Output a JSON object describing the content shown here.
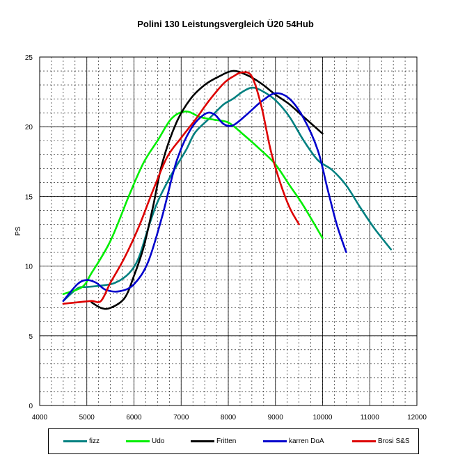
{
  "chart_data": {
    "type": "line",
    "title": "Polini 130 Leistungsvergleich Ü20 54Hub",
    "xlabel": "",
    "ylabel": "PS",
    "xlim": [
      4000,
      12000
    ],
    "ylim": [
      0,
      25
    ],
    "xticks": [
      4000,
      5000,
      6000,
      7000,
      8000,
      9000,
      10000,
      11000,
      12000
    ],
    "yticks": [
      0,
      5,
      10,
      15,
      20,
      25
    ],
    "grid": true,
    "legend_position": "bottom",
    "series": [
      {
        "name": "fizz",
        "color": "#008080",
        "points": [
          [
            4500,
            7.5
          ],
          [
            4800,
            8.4
          ],
          [
            5000,
            8.5
          ],
          [
            5300,
            8.6
          ],
          [
            5600,
            8.8
          ],
          [
            5900,
            9.5
          ],
          [
            6100,
            10.6
          ],
          [
            6300,
            12.7
          ],
          [
            6500,
            14.6
          ],
          [
            6800,
            16.6
          ],
          [
            7100,
            18.3
          ],
          [
            7300,
            19.6
          ],
          [
            7600,
            20.6
          ],
          [
            7900,
            21.6
          ],
          [
            8100,
            22
          ],
          [
            8300,
            22.5
          ],
          [
            8500,
            22.8
          ],
          [
            8700,
            22.6
          ],
          [
            9000,
            21.9
          ],
          [
            9300,
            20.7
          ],
          [
            9600,
            19
          ],
          [
            9900,
            17.6
          ],
          [
            10200,
            16.9
          ],
          [
            10500,
            15.8
          ],
          [
            10800,
            14.2
          ],
          [
            11100,
            12.7
          ],
          [
            11450,
            11.2
          ]
        ]
      },
      {
        "name": "Udo",
        "color": "#00ee00",
        "points": [
          [
            4500,
            8
          ],
          [
            4900,
            8.5
          ],
          [
            5100,
            9.5
          ],
          [
            5500,
            11.8
          ],
          [
            5900,
            15.1
          ],
          [
            6200,
            17.4
          ],
          [
            6500,
            19
          ],
          [
            6800,
            20.6
          ],
          [
            7100,
            21.1
          ],
          [
            7400,
            20.7
          ],
          [
            7700,
            20.5
          ],
          [
            8000,
            20.3
          ],
          [
            8300,
            19.5
          ],
          [
            8700,
            18.3
          ],
          [
            9000,
            17.3
          ],
          [
            9300,
            15.8
          ],
          [
            9600,
            14.3
          ],
          [
            10000,
            12
          ]
        ]
      },
      {
        "name": "Fritten",
        "color": "#000000",
        "points": [
          [
            5100,
            7.4
          ],
          [
            5300,
            7
          ],
          [
            5500,
            7
          ],
          [
            5800,
            7.7
          ],
          [
            6000,
            9.3
          ],
          [
            6200,
            11.3
          ],
          [
            6400,
            14.2
          ],
          [
            6600,
            17.4
          ],
          [
            6900,
            20.3
          ],
          [
            7200,
            22
          ],
          [
            7500,
            23
          ],
          [
            7800,
            23.6
          ],
          [
            8100,
            24
          ],
          [
            8400,
            23.7
          ],
          [
            8700,
            23.1
          ],
          [
            9000,
            22.3
          ],
          [
            9300,
            21.6
          ],
          [
            9600,
            20.7
          ],
          [
            10000,
            19.5
          ]
        ]
      },
      {
        "name": "karren DoA",
        "color": "#0000cc",
        "points": [
          [
            4500,
            7.5
          ],
          [
            4800,
            8.7
          ],
          [
            5000,
            9
          ],
          [
            5200,
            8.8
          ],
          [
            5400,
            8.3
          ],
          [
            5700,
            8.2
          ],
          [
            6000,
            8.7
          ],
          [
            6300,
            10.3
          ],
          [
            6600,
            13.6
          ],
          [
            6900,
            17.5
          ],
          [
            7200,
            19.8
          ],
          [
            7500,
            20.9
          ],
          [
            7700,
            20.9
          ],
          [
            7900,
            20.2
          ],
          [
            8100,
            20.1
          ],
          [
            8400,
            20.9
          ],
          [
            8700,
            21.8
          ],
          [
            9000,
            22.4
          ],
          [
            9300,
            22
          ],
          [
            9600,
            20.6
          ],
          [
            9900,
            18.3
          ],
          [
            10100,
            15.6
          ],
          [
            10300,
            13
          ],
          [
            10500,
            11
          ]
        ]
      },
      {
        "name": "Brosi S&S",
        "color": "#dd0000",
        "points": [
          [
            4500,
            7.3
          ],
          [
            4800,
            7.4
          ],
          [
            5100,
            7.5
          ],
          [
            5300,
            7.5
          ],
          [
            5500,
            8.8
          ],
          [
            5800,
            10.6
          ],
          [
            6100,
            12.8
          ],
          [
            6400,
            15.4
          ],
          [
            6700,
            17.8
          ],
          [
            7000,
            19.2
          ],
          [
            7300,
            20.5
          ],
          [
            7600,
            21.9
          ],
          [
            7900,
            23.1
          ],
          [
            8100,
            23.6
          ],
          [
            8300,
            23.9
          ],
          [
            8500,
            23.6
          ],
          [
            8700,
            21.5
          ],
          [
            8900,
            18.3
          ],
          [
            9100,
            16
          ],
          [
            9300,
            14.2
          ],
          [
            9500,
            13
          ]
        ]
      }
    ]
  }
}
